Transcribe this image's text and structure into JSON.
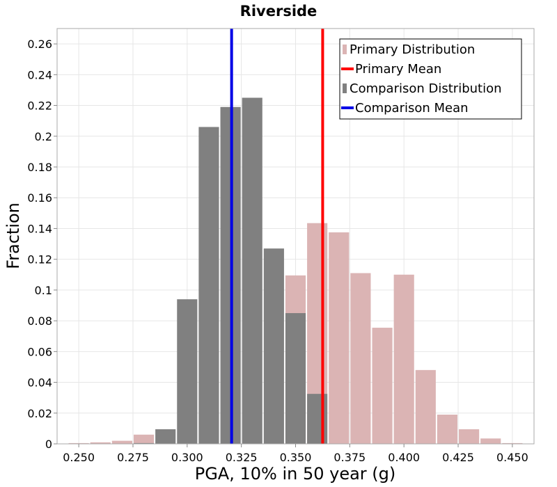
{
  "chart_data": {
    "type": "bar",
    "title": "Riverside",
    "xlabel": "PGA, 10% in 50 year (g)",
    "ylabel": "Fraction",
    "xlim": [
      0.24,
      0.46
    ],
    "ylim": [
      0,
      0.27
    ],
    "x_ticks": [
      "0.250",
      "0.275",
      "0.300",
      "0.325",
      "0.350",
      "0.375",
      "0.400",
      "0.425",
      "0.450"
    ],
    "y_ticks": [
      "0",
      "0.02",
      "0.04",
      "0.06",
      "0.08",
      "0.1",
      "0.12",
      "0.14",
      "0.16",
      "0.18",
      "0.2",
      "0.22",
      "0.24",
      "0.26"
    ],
    "grid": true,
    "legend_position": "top-right",
    "bin_width": 0.01,
    "bin_centers": [
      0.25,
      0.26,
      0.27,
      0.28,
      0.29,
      0.3,
      0.31,
      0.32,
      0.33,
      0.34,
      0.35,
      0.36,
      0.37,
      0.38,
      0.39,
      0.4,
      0.41,
      0.42,
      0.43,
      0.44,
      0.45
    ],
    "series": [
      {
        "name": "Primary Distribution",
        "kind": "bars",
        "color": "#dbb4b4",
        "values": [
          0.0005,
          0.001,
          0.002,
          0.006,
          0.0,
          0.0,
          0.0,
          0.0,
          0.0,
          0.0,
          0.1095,
          0.1435,
          0.1375,
          0.111,
          0.0755,
          0.11,
          0.048,
          0.019,
          0.0095,
          0.0035,
          0.0005
        ]
      },
      {
        "name": "Comparison Distribution",
        "kind": "bars",
        "color": "#808080",
        "values": [
          0.0,
          0.0,
          0.0,
          0.0005,
          0.0095,
          0.094,
          0.206,
          0.219,
          0.225,
          0.127,
          0.085,
          0.0325,
          0.0,
          0.0,
          0.0,
          0.0,
          0.0,
          0.0,
          0.0,
          0.0,
          0.0
        ]
      },
      {
        "name": "Primary Mean",
        "kind": "vline",
        "color": "#ff0000",
        "x": 0.3625
      },
      {
        "name": "Comparison Mean",
        "kind": "vline",
        "color": "#0000e6",
        "x": 0.3205
      }
    ],
    "legend": [
      {
        "label": "Primary Distribution",
        "kind": "bar",
        "color": "#dbb4b4"
      },
      {
        "label": "Primary Mean",
        "kind": "line",
        "color": "#ff0000"
      },
      {
        "label": "Comparison Distribution",
        "kind": "bar",
        "color": "#808080"
      },
      {
        "label": "Comparison Mean",
        "kind": "line",
        "color": "#0000e6"
      }
    ]
  }
}
